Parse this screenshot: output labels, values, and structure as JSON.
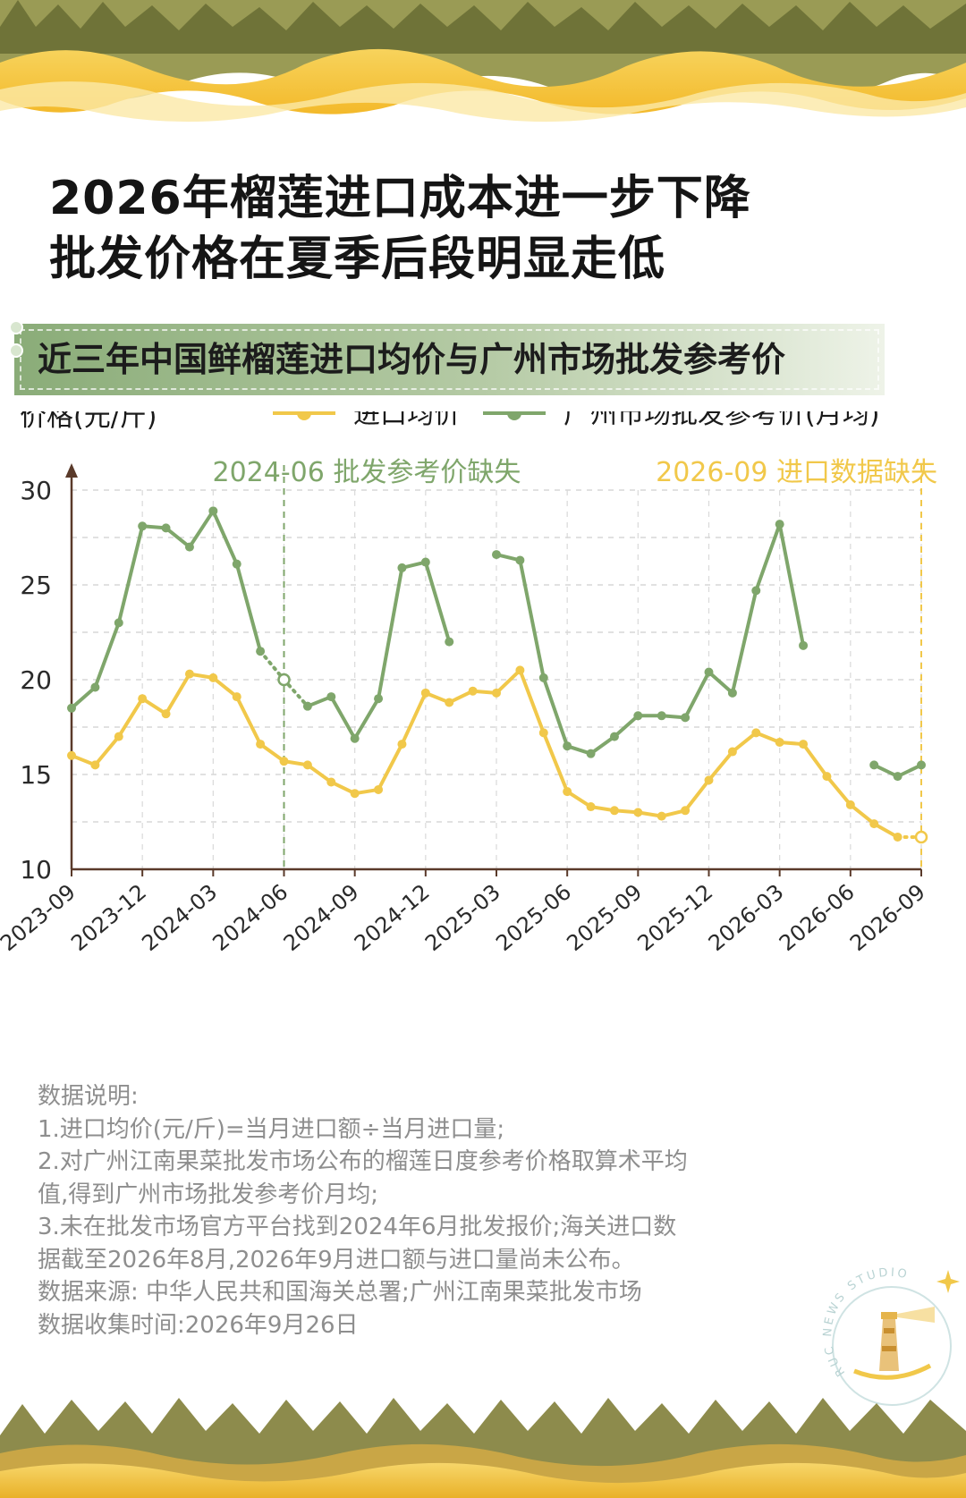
{
  "title_lines": [
    "2026年榴莲进口成本进一步下降",
    "批发价格在夏季后段明显走低"
  ],
  "subtitle": "近三年中国鲜榴莲进口均价与广州市场批发参考价",
  "logo_text": "RUC NEWS STUDIO",
  "chart_data": {
    "type": "line",
    "ylabel": "价格(元/斤)",
    "ylim": [
      10,
      30
    ],
    "yticks": [
      10,
      15,
      20,
      25,
      30
    ],
    "grid": true,
    "legend_position": "top",
    "xticks": [
      "2023-09",
      "2023-12",
      "2024-03",
      "2024-06",
      "2024-09",
      "2024-12",
      "2025-03",
      "2025-06",
      "2025-09",
      "2025-12",
      "2026-03",
      "2026-06",
      "2026-09"
    ],
    "x": [
      "2023-09",
      "2023-10",
      "2023-11",
      "2023-12",
      "2024-01",
      "2024-02",
      "2024-03",
      "2024-04",
      "2024-05",
      "2024-06",
      "2024-07",
      "2024-08",
      "2024-09",
      "2024-10",
      "2024-11",
      "2024-12",
      "2025-01",
      "2025-02",
      "2025-03",
      "2025-04",
      "2025-05",
      "2025-06",
      "2025-07",
      "2025-08",
      "2025-09",
      "2025-10",
      "2025-11",
      "2025-12",
      "2026-01",
      "2026-02",
      "2026-03",
      "2026-04",
      "2026-05",
      "2026-06",
      "2026-07",
      "2026-08",
      "2026-09"
    ],
    "series": [
      {
        "name": "进口均价",
        "color": "#f1c84a",
        "values": [
          16.0,
          15.5,
          17.0,
          19.0,
          18.2,
          20.3,
          20.1,
          19.1,
          16.6,
          15.7,
          15.5,
          14.6,
          14.0,
          14.2,
          16.6,
          19.3,
          18.8,
          19.4,
          19.3,
          20.5,
          17.2,
          14.1,
          13.3,
          13.1,
          13.0,
          12.8,
          13.1,
          14.7,
          16.2,
          17.2,
          16.7,
          16.6,
          14.9,
          13.4,
          12.4,
          11.7,
          null
        ],
        "estimated": [
          {
            "x": "2026-09",
            "y": 11.7
          }
        ]
      },
      {
        "name": "广州市场批发参考价(月均)",
        "color": "#7fa66b",
        "values": [
          18.5,
          19.6,
          23.0,
          28.1,
          28.0,
          27.0,
          28.9,
          26.1,
          21.5,
          null,
          18.6,
          19.1,
          16.9,
          19.0,
          25.9,
          26.2,
          22.0,
          null,
          26.6,
          26.3,
          20.1,
          16.5,
          16.1,
          17.0,
          18.1,
          18.1,
          18.0,
          20.4,
          19.3,
          24.7,
          28.2,
          21.8,
          null,
          null,
          15.5,
          14.9,
          15.5
        ],
        "estimated": [
          {
            "x": "2024-06",
            "y": 20.0
          }
        ]
      }
    ],
    "annotations": [
      {
        "x": "2024-06",
        "text": "2024-06 批发参考价缺失",
        "color": "#7fa66b"
      },
      {
        "x": "2026-09",
        "text": "2026-09 进口数据缺失",
        "color": "#f1c84a"
      }
    ]
  },
  "notes": [
    "数据说明:",
    "1.进口均价(元/斤)=当月进口额÷当月进口量;",
    "2.对广州江南果菜批发市场公布的榴莲日度参考价格取算术平均",
    "值,得到广州市场批发参考价月均;",
    "3.未在批发市场官方平台找到2024年6月批发报价;海关进口数",
    "据截至2026年8月,2026年9月进口额与进口量尚未公布。",
    "数据来源: 中华人民共和国海关总署;广州江南果菜批发市场",
    "数据收集时间:2026年9月26日"
  ]
}
